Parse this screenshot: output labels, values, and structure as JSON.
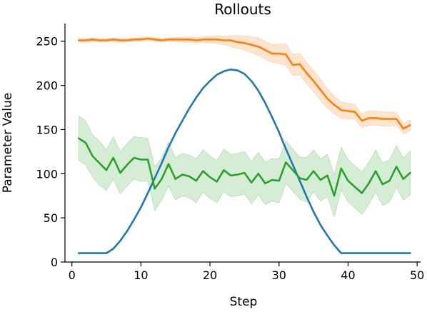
{
  "chart_data": {
    "type": "line",
    "title": "Rollouts",
    "xlabel": "Step",
    "ylabel": "Parameter Value",
    "xlim": [
      -1,
      50.5
    ],
    "ylim": [
      0,
      270
    ],
    "xticks": [
      0,
      10,
      20,
      30,
      40,
      50
    ],
    "yticks": [
      0,
      50,
      100,
      150,
      200,
      250
    ],
    "grid": false,
    "legend": "none",
    "series": [
      {
        "color": "#1f77b4",
        "x": [
          1,
          2,
          3,
          4,
          5,
          6,
          7,
          8,
          9,
          10,
          11,
          12,
          13,
          14,
          15,
          16,
          17,
          18,
          19,
          20,
          21,
          22,
          23,
          24,
          25,
          26,
          27,
          28,
          29,
          30,
          31,
          32,
          33,
          34,
          35,
          36,
          37,
          38,
          39,
          40,
          41,
          42,
          43,
          44,
          45,
          46,
          47,
          48,
          49
        ],
        "values": [
          10,
          10,
          10,
          10,
          10,
          15,
          24,
          35,
          48,
          62,
          78,
          95,
          112,
          130,
          146,
          160,
          174,
          186,
          197,
          205,
          212,
          216,
          218,
          217,
          213,
          205,
          194,
          180,
          164,
          147,
          128,
          110,
          92,
          74,
          57,
          42,
          30,
          19,
          10,
          10,
          10,
          10,
          10,
          10,
          10,
          10,
          10,
          10,
          10
        ],
        "band": null
      },
      {
        "color": "#ff7f0e",
        "x": [
          1,
          2,
          3,
          4,
          5,
          6,
          7,
          8,
          9,
          10,
          11,
          12,
          13,
          14,
          15,
          16,
          17,
          18,
          19,
          20,
          21,
          22,
          23,
          24,
          25,
          26,
          27,
          28,
          29,
          30,
          31,
          32,
          33,
          34,
          35,
          36,
          37,
          38,
          39,
          40,
          41,
          42,
          43,
          44,
          45,
          46,
          47,
          48,
          49
        ],
        "values": [
          251,
          251,
          252,
          251,
          251,
          252,
          251,
          251,
          252,
          252,
          253,
          252,
          251,
          252,
          252,
          252,
          252,
          251,
          252,
          252,
          252,
          251,
          251,
          249,
          248,
          246,
          244,
          240,
          236,
          236,
          235,
          223,
          224,
          214,
          205,
          195,
          185,
          178,
          172,
          171,
          170,
          160,
          163,
          163,
          162,
          162,
          162,
          151,
          155
        ],
        "band": {
          "lower": [
            249,
            249,
            250,
            249,
            249,
            250,
            249,
            249,
            250,
            250,
            251,
            250,
            249,
            250,
            250,
            249,
            249,
            248,
            249,
            248,
            248,
            246,
            244,
            242,
            240,
            237,
            234,
            230,
            226,
            225,
            223,
            211,
            212,
            202,
            193,
            183,
            174,
            168,
            163,
            162,
            162,
            152,
            155,
            155,
            154,
            154,
            155,
            145,
            149
          ],
          "upper": [
            253,
            253,
            254,
            253,
            253,
            254,
            253,
            253,
            254,
            254,
            255,
            254,
            253,
            254,
            254,
            255,
            255,
            254,
            255,
            256,
            256,
            256,
            256,
            256,
            256,
            255,
            254,
            250,
            246,
            247,
            247,
            235,
            236,
            226,
            217,
            207,
            196,
            188,
            181,
            180,
            178,
            168,
            171,
            171,
            170,
            170,
            169,
            157,
            161
          ]
        }
      },
      {
        "color": "#2ca02c",
        "x": [
          1,
          2,
          3,
          4,
          5,
          6,
          7,
          8,
          9,
          10,
          11,
          12,
          13,
          14,
          15,
          16,
          17,
          18,
          19,
          20,
          21,
          22,
          23,
          24,
          25,
          26,
          27,
          28,
          29,
          30,
          31,
          32,
          33,
          34,
          35,
          36,
          37,
          38,
          39,
          40,
          41,
          42,
          43,
          44,
          45,
          46,
          47,
          48,
          49
        ],
        "values": [
          140,
          135,
          120,
          112,
          104,
          118,
          101,
          110,
          118,
          116,
          116,
          83,
          94,
          111,
          94,
          99,
          97,
          92,
          103,
          96,
          91,
          104,
          98,
          99,
          101,
          90,
          100,
          89,
          93,
          92,
          113,
          104,
          95,
          93,
          103,
          93,
          98,
          75,
          106,
          92,
          85,
          78,
          89,
          103,
          88,
          92,
          108,
          94,
          101
        ],
        "band": {
          "lower": [
            115,
            110,
            96,
            87,
            81,
            94,
            77,
            86,
            94,
            91,
            92,
            58,
            70,
            86,
            70,
            75,
            73,
            67,
            79,
            72,
            67,
            80,
            74,
            75,
            77,
            66,
            76,
            65,
            69,
            67,
            89,
            80,
            71,
            68,
            79,
            69,
            74,
            51,
            82,
            68,
            61,
            54,
            65,
            79,
            64,
            68,
            84,
            70,
            76
          ],
          "upper": [
            165,
            160,
            144,
            137,
            127,
            142,
            125,
            134,
            142,
            141,
            140,
            108,
            118,
            136,
            118,
            123,
            121,
            117,
            127,
            120,
            115,
            128,
            122,
            123,
            125,
            114,
            124,
            113,
            117,
            117,
            137,
            128,
            119,
            118,
            127,
            117,
            122,
            99,
            130,
            116,
            109,
            102,
            113,
            127,
            112,
            116,
            132,
            118,
            126
          ]
        }
      }
    ]
  }
}
